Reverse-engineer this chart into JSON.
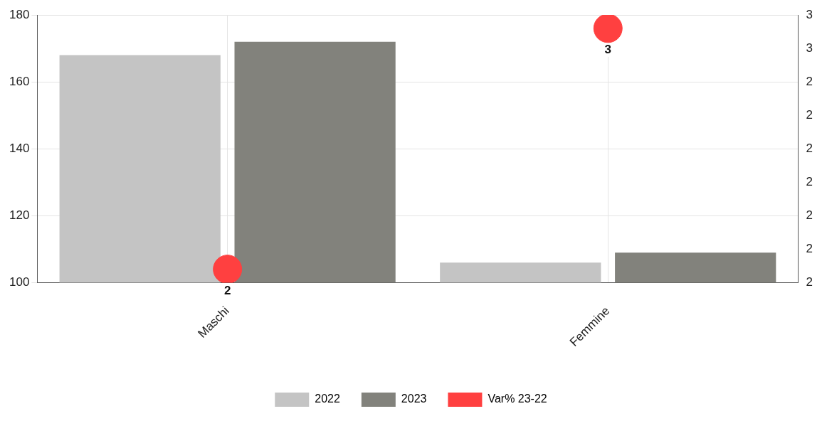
{
  "chart_data": {
    "type": "bar",
    "categories": [
      "Maschi",
      "Femmine"
    ],
    "series": [
      {
        "name": "2022",
        "color": "#c4c4c4",
        "values": [
          168,
          106
        ]
      },
      {
        "name": "2023",
        "color": "#82827c",
        "values": [
          172,
          109
        ]
      },
      {
        "name": "Var% 23-22",
        "type": "scatter",
        "axis": "y2",
        "color": "#ff4040",
        "values": [
          1.84,
          2.56
        ],
        "value_labels": [
          "2",
          "3"
        ]
      }
    ],
    "ylim": [
      100,
      180
    ],
    "yticks": [
      100,
      120,
      140,
      160,
      180
    ],
    "y2lim": [
      1.8,
      2.6
    ],
    "y2ticks": [
      {
        "value": 1.8,
        "label": "2"
      },
      {
        "value": 1.9,
        "label": "2"
      },
      {
        "value": 2.0,
        "label": "2"
      },
      {
        "value": 2.1,
        "label": "2"
      },
      {
        "value": 2.2,
        "label": "2"
      },
      {
        "value": 2.3,
        "label": "2"
      },
      {
        "value": 2.4,
        "label": "2"
      },
      {
        "value": 2.5,
        "label": "3"
      },
      {
        "value": 2.6,
        "label": "3"
      }
    ],
    "grid": true,
    "legend": "bottom",
    "marker": "circle"
  }
}
